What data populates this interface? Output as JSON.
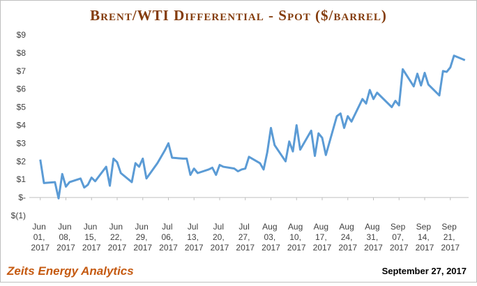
{
  "chart_data": {
    "type": "line",
    "title": "Brent/WTI Differential - Spot ($/barrel)",
    "footer_left": "Zeits Energy Analytics",
    "footer_right": "September 27, 2017",
    "color": "#5b9bd5",
    "x": [
      "2017-06-01",
      "2017-06-02",
      "2017-06-05",
      "2017-06-06",
      "2017-06-07",
      "2017-06-08",
      "2017-06-09",
      "2017-06-12",
      "2017-06-13",
      "2017-06-14",
      "2017-06-15",
      "2017-06-16",
      "2017-06-19",
      "2017-06-20",
      "2017-06-21",
      "2017-06-22",
      "2017-06-23",
      "2017-06-26",
      "2017-06-27",
      "2017-06-28",
      "2017-06-29",
      "2017-06-30",
      "2017-07-03",
      "2017-07-05",
      "2017-07-06",
      "2017-07-07",
      "2017-07-10",
      "2017-07-11",
      "2017-07-12",
      "2017-07-13",
      "2017-07-14",
      "2017-07-17",
      "2017-07-18",
      "2017-07-19",
      "2017-07-20",
      "2017-07-21",
      "2017-07-24",
      "2017-07-25",
      "2017-07-26",
      "2017-07-27",
      "2017-07-28",
      "2017-07-31",
      "2017-08-01",
      "2017-08-02",
      "2017-08-03",
      "2017-08-04",
      "2017-08-07",
      "2017-08-08",
      "2017-08-09",
      "2017-08-10",
      "2017-08-11",
      "2017-08-14",
      "2017-08-15",
      "2017-08-16",
      "2017-08-17",
      "2017-08-18",
      "2017-08-21",
      "2017-08-22",
      "2017-08-23",
      "2017-08-24",
      "2017-08-25",
      "2017-08-28",
      "2017-08-29",
      "2017-08-30",
      "2017-08-31",
      "2017-09-01",
      "2017-09-05",
      "2017-09-06",
      "2017-09-07",
      "2017-09-08",
      "2017-09-11",
      "2017-09-12",
      "2017-09-13",
      "2017-09-14",
      "2017-09-15",
      "2017-09-18",
      "2017-09-19",
      "2017-09-20",
      "2017-09-21",
      "2017-09-22",
      "2017-09-25"
    ],
    "values": [
      2.1,
      0.8,
      0.85,
      -0.05,
      1.3,
      0.6,
      0.85,
      1.05,
      0.55,
      0.7,
      1.1,
      0.9,
      1.7,
      0.65,
      2.15,
      1.95,
      1.35,
      0.85,
      1.9,
      1.7,
      2.15,
      1.05,
      1.9,
      2.6,
      3.0,
      2.2,
      2.15,
      2.15,
      1.25,
      1.6,
      1.35,
      1.55,
      1.65,
      1.25,
      1.8,
      1.7,
      1.6,
      1.45,
      1.55,
      1.6,
      2.25,
      1.9,
      1.55,
      2.5,
      3.85,
      2.9,
      2.0,
      3.1,
      2.55,
      4.0,
      2.65,
      3.7,
      2.3,
      3.55,
      3.3,
      2.35,
      4.5,
      4.65,
      3.85,
      4.5,
      4.2,
      5.45,
      5.2,
      5.95,
      5.45,
      5.8,
      5.0,
      5.35,
      5.1,
      7.1,
      6.15,
      6.85,
      6.2,
      6.9,
      6.25,
      5.65,
      7.0,
      6.95,
      7.2,
      7.85,
      7.6
    ],
    "xlim": [
      "2017-05-29",
      "2017-09-26"
    ],
    "xticks": [
      {
        "value": "2017-06-01",
        "label": "Jun 01, 2017"
      },
      {
        "value": "2017-06-08",
        "label": "Jun 08, 2017"
      },
      {
        "value": "2017-06-15",
        "label": "Jun 15, 2017"
      },
      {
        "value": "2017-06-22",
        "label": "Jun 22, 2017"
      },
      {
        "value": "2017-06-29",
        "label": "Jun 29, 2017"
      },
      {
        "value": "2017-07-06",
        "label": "Jul 06, 2017"
      },
      {
        "value": "2017-07-13",
        "label": "Jul 13, 2017"
      },
      {
        "value": "2017-07-20",
        "label": "Jul 20, 2017"
      },
      {
        "value": "2017-07-27",
        "label": "Jul 27, 2017"
      },
      {
        "value": "2017-08-03",
        "label": "Aug 03, 2017"
      },
      {
        "value": "2017-08-10",
        "label": "Aug 10, 2017"
      },
      {
        "value": "2017-08-17",
        "label": "Aug 17, 2017"
      },
      {
        "value": "2017-08-24",
        "label": "Aug 24, 2017"
      },
      {
        "value": "2017-08-31",
        "label": "Aug 31, 2017"
      },
      {
        "value": "2017-09-07",
        "label": "Sep 07, 2017"
      },
      {
        "value": "2017-09-14",
        "label": "Sep 14, 2017"
      },
      {
        "value": "2017-09-21",
        "label": "Sep 21, 2017"
      }
    ],
    "ylim": [
      -1,
      9
    ],
    "yticks": [
      {
        "value": -1,
        "label": "$(1)"
      },
      {
        "value": 0,
        "label": "$-"
      },
      {
        "value": 1,
        "label": "$1"
      },
      {
        "value": 2,
        "label": "$2"
      },
      {
        "value": 3,
        "label": "$3"
      },
      {
        "value": 4,
        "label": "$4"
      },
      {
        "value": 5,
        "label": "$5"
      },
      {
        "value": 6,
        "label": "$6"
      },
      {
        "value": 7,
        "label": "$7"
      },
      {
        "value": 8,
        "label": "$8"
      },
      {
        "value": 9,
        "label": "$9"
      }
    ]
  }
}
